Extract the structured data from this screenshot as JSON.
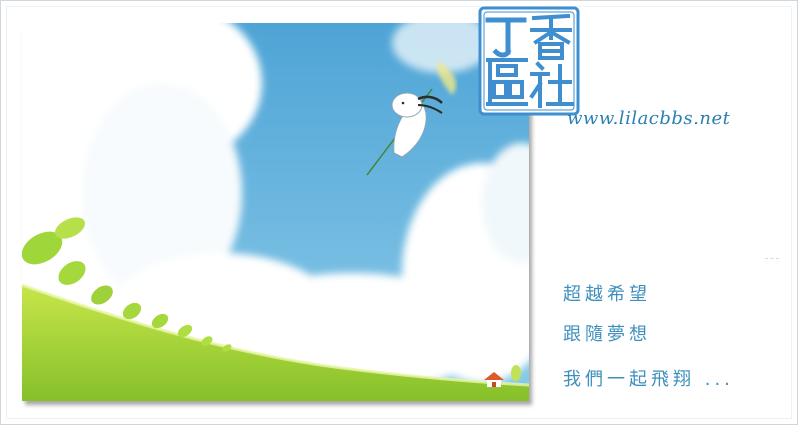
{
  "stamp": {
    "characters": [
      "丁",
      "香",
      "區",
      "社"
    ]
  },
  "site": {
    "url": "www.lilacbbs.net"
  },
  "poem": {
    "lines": [
      "超越希望",
      "跟隨夢想",
      "我們一起飛翔 ..."
    ]
  },
  "colors": {
    "sky": "#5aaedb",
    "grass": "#9ccc2c",
    "text_blue": "#3e8fbd",
    "stamp_blue": "#3f8fd0"
  }
}
